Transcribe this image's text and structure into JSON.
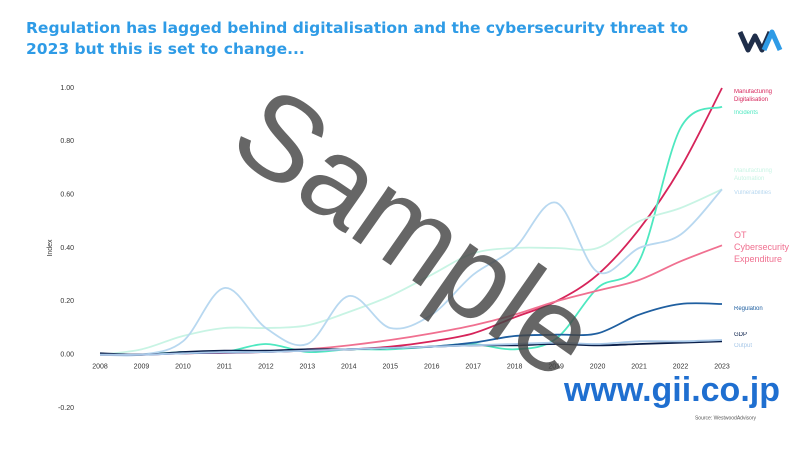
{
  "chart_data": {
    "type": "line",
    "title": "Regulation has lagged behind digitalisation and the cybersecurity threat to 2023 but this is set to change...",
    "y_label": "Index",
    "source": "Source: WestwoodAdvisory",
    "watermark": "Sample",
    "watermark_site": "www.gii.co.jp",
    "x": [
      2008,
      2009,
      2010,
      2011,
      2012,
      2013,
      2014,
      2015,
      2016,
      2017,
      2018,
      2019,
      2020,
      2021,
      2022,
      2023
    ],
    "xlim": [
      2008,
      2023
    ],
    "xticks": [
      2008,
      2009,
      2010,
      2011,
      2012,
      2013,
      2014,
      2015,
      2016,
      2017,
      2018,
      2019,
      2020,
      2021,
      2022,
      2023
    ],
    "ylim": [
      -0.2,
      1.0
    ],
    "yticks": [
      {
        "value": -0.2,
        "label": "-0.20"
      },
      {
        "value": 0,
        "label": "0.00"
      },
      {
        "value": 0.2,
        "label": "0.20"
      },
      {
        "value": 0.4,
        "label": "0.40"
      },
      {
        "value": 0.6,
        "label": "0.60"
      },
      {
        "value": 0.8,
        "label": "0.80"
      },
      {
        "value": 1.0,
        "label": "1.00"
      }
    ],
    "grid": false,
    "series": [
      {
        "name": "Manufacturing Digitalisation",
        "color": "#d6245a",
        "values": [
          0,
          0,
          0.005,
          0.007,
          0.01,
          0.015,
          0.02,
          0.03,
          0.05,
          0.08,
          0.14,
          0.2,
          0.3,
          0.47,
          0.7,
          1.0
        ]
      },
      {
        "name": "Incidents",
        "color": "#4ee8c0",
        "values": [
          0,
          0,
          0.01,
          0.01,
          0.04,
          0.01,
          0.02,
          0.02,
          0.03,
          0.04,
          0.02,
          0.06,
          0.25,
          0.35,
          0.85,
          0.93
        ]
      },
      {
        "name": "Manufacturing Automation",
        "color": "#c8f4e4",
        "values": [
          0,
          0.02,
          0.07,
          0.1,
          0.1,
          0.11,
          0.16,
          0.22,
          0.3,
          0.38,
          0.4,
          0.4,
          0.4,
          0.5,
          0.55,
          0.62
        ]
      },
      {
        "name": "Vulnerabilities",
        "color": "#b8d8f0",
        "values": [
          0,
          0,
          0.05,
          0.25,
          0.1,
          0.04,
          0.22,
          0.1,
          0.15,
          0.3,
          0.4,
          0.57,
          0.31,
          0.4,
          0.45,
          0.62
        ]
      },
      {
        "name": "OT Cybersecurity Expenditure",
        "color": "#f07090",
        "values": [
          0,
          0,
          0.005,
          0.008,
          0.01,
          0.02,
          0.035,
          0.055,
          0.08,
          0.11,
          0.15,
          0.2,
          0.24,
          0.28,
          0.35,
          0.41
        ]
      },
      {
        "name": "Regulation",
        "color": "#1f5fa0",
        "values": [
          0,
          0,
          0.005,
          0.008,
          0.01,
          0.015,
          0.02,
          0.025,
          0.03,
          0.045,
          0.07,
          0.075,
          0.08,
          0.15,
          0.19,
          0.19
        ]
      },
      {
        "name": "GDP",
        "color": "#0a1f4a",
        "values": [
          0.005,
          0,
          0.01,
          0.015,
          0.015,
          0.02,
          0.02,
          0.025,
          0.03,
          0.035,
          0.035,
          0.04,
          0.035,
          0.04,
          0.045,
          0.05
        ]
      },
      {
        "name": "Output",
        "color": "#a8c8e8",
        "values": [
          0,
          0,
          0.005,
          0.01,
          0.01,
          0.015,
          0.02,
          0.025,
          0.03,
          0.035,
          0.04,
          0.045,
          0.04,
          0.05,
          0.05,
          0.055
        ]
      }
    ]
  }
}
